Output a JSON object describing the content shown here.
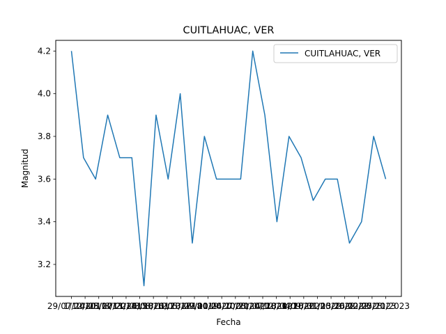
{
  "chart_data": {
    "type": "line",
    "title": "CUITLAHUAC, VER",
    "xlabel": "Fecha",
    "ylabel": "Magnitud",
    "ylim": [
      3.05,
      4.25
    ],
    "y_ticks": [
      3.2,
      3.4,
      3.6,
      3.8,
      4.0,
      4.2
    ],
    "y_tick_labels": [
      "3.2",
      "3.4",
      "3.6",
      "3.8",
      "4.0",
      "4.2"
    ],
    "grid": false,
    "legend_position": "top-right",
    "x_tick_labels": [
      "29/07/2010",
      "1/12/2011",
      "14/03/2013",
      "25/07/2014",
      "8/11/2015",
      "22/03/2016",
      "5/08/2017",
      "18/12/2017",
      "1/05/2018",
      "13/09/2019",
      "27/01/2020",
      "10/06/2020",
      "24/10/2020",
      "7/03/2021",
      "21/07/2021",
      "4/12/2021",
      "18/04/2022",
      "1/09/2022",
      "15/01/2022",
      "31/05/2022",
      "13/10/2022",
      "26/02/2023",
      "12/07/2023",
      "25/11/2023"
    ],
    "x_tick_labels_visible": [
      "29/07/20",
      "1/",
      "",
      "",
      "",
      "",
      "",
      "",
      "",
      "",
      "",
      "",
      "",
      "",
      "",
      "",
      "",
      "",
      "",
      "",
      "",
      "",
      "",
      "2023"
    ],
    "series": [
      {
        "name": "CUITLAHUAC, VER",
        "color": "#1f77b4",
        "values": [
          4.2,
          3.7,
          3.6,
          3.9,
          3.7,
          3.7,
          3.1,
          3.9,
          3.6,
          4.0,
          3.3,
          3.8,
          3.6,
          3.6,
          3.6,
          4.2,
          3.9,
          3.4,
          3.8,
          3.7,
          3.5,
          3.6,
          3.6,
          3.3,
          3.4,
          3.8,
          3.6
        ]
      }
    ]
  }
}
